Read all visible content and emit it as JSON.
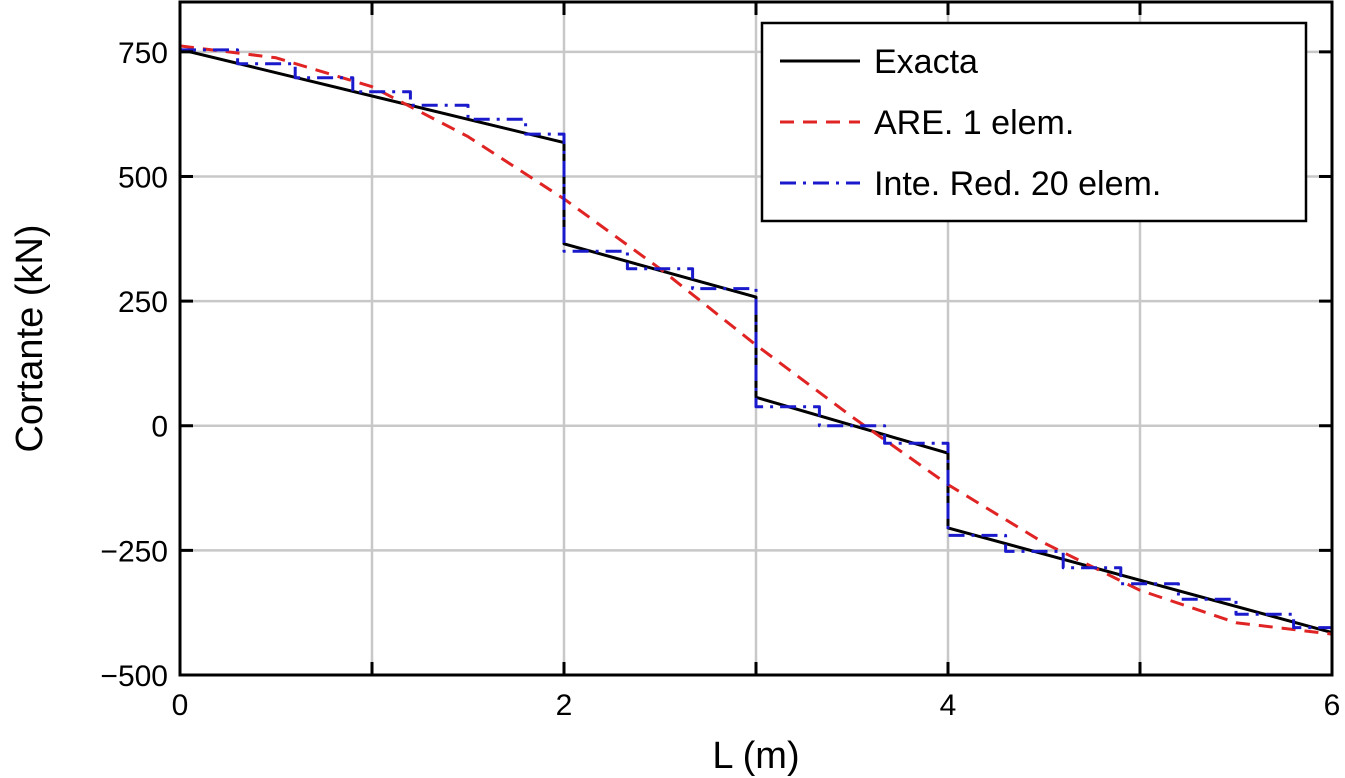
{
  "chart_data": {
    "type": "line",
    "title": "",
    "xlabel": "L (m)",
    "ylabel": "Cortante (kN)",
    "xlim": [
      0,
      6
    ],
    "ylim": [
      -500,
      850
    ],
    "xticks": [
      0,
      2,
      4,
      6
    ],
    "xtick_labels": [
      "0",
      "2",
      "4",
      "6"
    ],
    "xgrid": [
      0,
      1,
      2,
      3,
      4,
      5,
      6
    ],
    "yticks": [
      -500,
      -250,
      0,
      250,
      500,
      750
    ],
    "ytick_labels": [
      "−500",
      "−250",
      "0",
      "250",
      "500",
      "750"
    ],
    "grid": true,
    "legend_position": "top-right",
    "series": [
      {
        "name": "Exacta",
        "style": "solid",
        "color": "#000000",
        "x": [
          0,
          2,
          2,
          3,
          3,
          4,
          4,
          6
        ],
        "y": [
          755,
          568,
          365,
          258,
          57,
          -55,
          -205,
          -415
        ]
      },
      {
        "name": "ARE. 1 elem.",
        "style": "dashed",
        "color": "#e02424",
        "x": [
          0,
          0.5,
          1,
          1.5,
          2,
          2.5,
          3,
          3.5,
          4,
          4.5,
          5,
          5.5,
          6
        ],
        "y": [
          762,
          738,
          680,
          580,
          455,
          315,
          162,
          18,
          -118,
          -235,
          -330,
          -395,
          -418
        ]
      },
      {
        "name": "Inte. Red. 20 elem.",
        "style": "dashdot",
        "color": "#1a1acc",
        "x": [
          0,
          0.3,
          0.3,
          0.6,
          0.6,
          0.9,
          0.9,
          1.2,
          1.2,
          1.5,
          1.5,
          1.8,
          1.8,
          2.0,
          2.0,
          2.33,
          2.33,
          2.67,
          2.67,
          3.0,
          3.0,
          3.33,
          3.33,
          3.67,
          3.67,
          4.0,
          4.0,
          4.3,
          4.3,
          4.6,
          4.6,
          4.9,
          4.9,
          5.2,
          5.2,
          5.5,
          5.5,
          5.8,
          5.8,
          6.0
        ],
        "y": [
          754,
          754,
          726,
          726,
          698,
          698,
          670,
          670,
          643,
          643,
          615,
          615,
          585,
          585,
          350,
          350,
          315,
          315,
          275,
          275,
          38,
          38,
          0,
          0,
          -35,
          -35,
          -220,
          -220,
          -252,
          -252,
          -285,
          -285,
          -317,
          -317,
          -348,
          -348,
          -378,
          -378,
          -405,
          -405
        ]
      }
    ]
  }
}
